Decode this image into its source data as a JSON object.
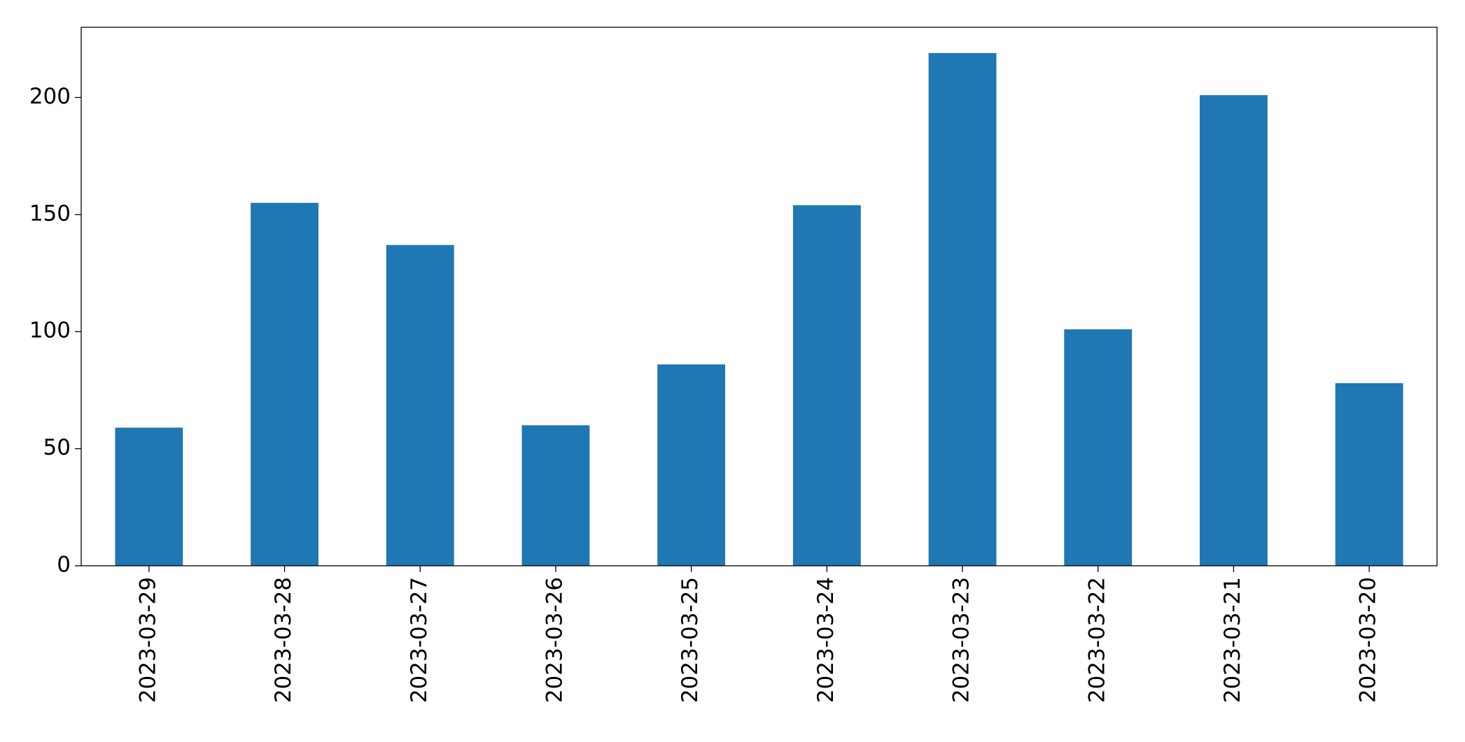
{
  "chart_data": {
    "type": "bar",
    "categories": [
      "2023-03-29",
      "2023-03-28",
      "2023-03-27",
      "2023-03-26",
      "2023-03-25",
      "2023-03-24",
      "2023-03-23",
      "2023-03-22",
      "2023-03-21",
      "2023-03-20"
    ],
    "values": [
      59,
      155,
      137,
      60,
      86,
      154,
      219,
      101,
      201,
      78
    ],
    "color": "#1f77b4",
    "ylim": [
      0,
      230
    ],
    "yticks": [
      0,
      50,
      100,
      150,
      200
    ],
    "grid": false
  }
}
